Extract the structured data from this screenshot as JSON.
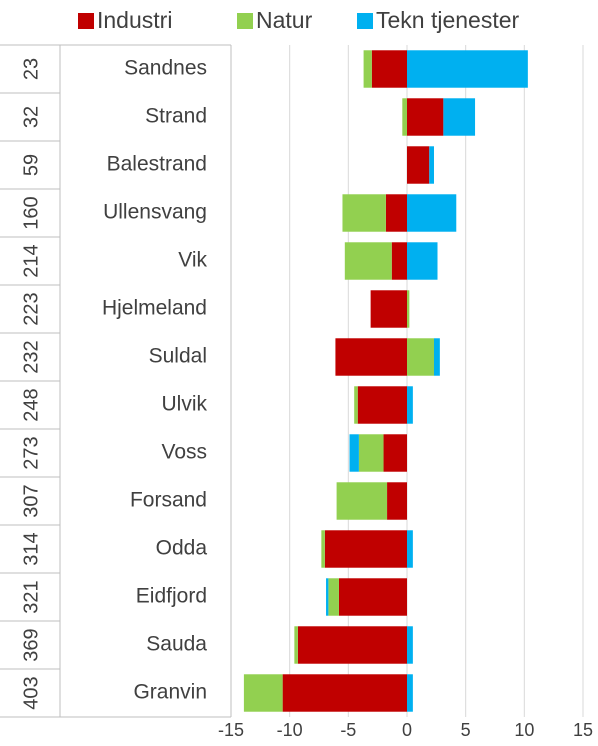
{
  "chart_data": {
    "type": "diverging_stacked_bar",
    "groups": [
      "23",
      "32",
      "59",
      "160",
      "214",
      "223",
      "232",
      "248",
      "273",
      "307",
      "314",
      "321",
      "369",
      "403"
    ],
    "categories": [
      "Sandnes",
      "Strand",
      "Balestrand",
      "Ullensvang",
      "Vik",
      "Hjelmeland",
      "Suldal",
      "Ulvik",
      "Voss",
      "Forsand",
      "Odda",
      "Eidfjord",
      "Sauda",
      "Granvin"
    ],
    "series": [
      {
        "name": "Industri",
        "color": "#c00000",
        "values": [
          -3.0,
          3.1,
          1.9,
          -1.8,
          -1.3,
          -3.1,
          -6.1,
          -4.2,
          -2.0,
          -1.7,
          -7.0,
          -5.8,
          -9.3,
          -10.6
        ]
      },
      {
        "name": "Natur",
        "color": "#92d050",
        "values": [
          -0.7,
          -0.4,
          0,
          -3.7,
          -4.0,
          0.2,
          2.3,
          -0.3,
          -2.1,
          -4.3,
          -0.3,
          -0.9,
          -0.3,
          -3.3
        ]
      },
      {
        "name": "Tekn tjenester",
        "color": "#00b0f0",
        "values": [
          10.3,
          2.7,
          0.4,
          4.2,
          2.6,
          0,
          0.5,
          0.5,
          -0.8,
          0,
          0.5,
          -0.2,
          0.5,
          0.5
        ]
      }
    ],
    "xlim": [
      -15,
      15
    ],
    "xticks": [
      -15,
      -10,
      -5,
      0,
      5,
      10,
      15
    ],
    "grid": true,
    "legend": "top"
  }
}
